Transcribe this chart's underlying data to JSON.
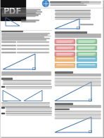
{
  "bg_color": "#ffffff",
  "pdf_bg": "#111111",
  "pdf_text_color": "#ffffff",
  "page_bg": "#e8e8e8",
  "shadow_color": "#999999",
  "text_dark": "#333333",
  "text_gray": "#777777",
  "blue": "#3a6fa8",
  "red_box": "#e87070",
  "green_box": "#70c080",
  "orange_box": "#e8a050",
  "teal_box": "#50a8c8",
  "line_gray": "#aaaaaa",
  "border_gray": "#cccccc",
  "header_blue": "#2a4a7a",
  "globe_blue": "#4488cc",
  "pink": "#f4aaaa",
  "lt_green": "#aaeebb",
  "lt_blue": "#aaccee",
  "lt_orange": "#f4cc99",
  "yellow": "#f4e890"
}
